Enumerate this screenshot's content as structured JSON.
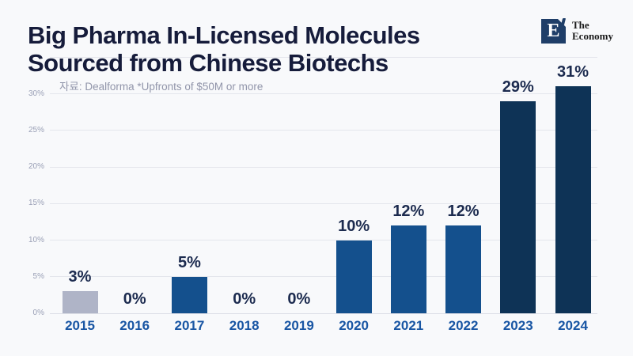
{
  "page": {
    "background": "#f8f9fb"
  },
  "logo": {
    "monogram": "E",
    "name_line1": "The",
    "name_line2": "Economy",
    "square_color": "#1f3e68"
  },
  "chart_data": {
    "type": "bar",
    "title": "Big Pharma In-Licensed Molecules Sourced from Chinese Biotechs",
    "title_lines": [
      "Big Pharma In-Licensed Molecules",
      "Sourced from Chinese Biotechs"
    ],
    "source_note": "자료: Dealforma *Upfronts of $50M or more",
    "categories": [
      "2015",
      "2016",
      "2017",
      "2018",
      "2019",
      "2020",
      "2021",
      "2022",
      "2023",
      "2024"
    ],
    "values": [
      3,
      0,
      5,
      0,
      0,
      10,
      12,
      12,
      29,
      31
    ],
    "value_labels": [
      "3%",
      "0%",
      "5%",
      "0%",
      "0%",
      "10%",
      "12%",
      "12%",
      "29%",
      "31%"
    ],
    "values_unit": "%",
    "xlabel": "",
    "ylabel": "",
    "ylim": [
      0,
      35
    ],
    "yticks": [
      {
        "value": 0,
        "label": "0%"
      },
      {
        "value": 5,
        "label": "5%"
      },
      {
        "value": 10,
        "label": "10%"
      },
      {
        "value": 15,
        "label": "15%"
      },
      {
        "value": 20,
        "label": "20%"
      },
      {
        "value": 25,
        "label": "25%"
      },
      {
        "value": 30,
        "label": "30%"
      },
      {
        "value": 35,
        "label": ""
      }
    ],
    "grid": true,
    "legend": "none",
    "bar_colors": [
      "#afb4c7",
      "#14508d",
      "#14508d",
      "#14508d",
      "#14508d",
      "#14508d",
      "#14508d",
      "#14508d",
      "#0e3356",
      "#0e3356"
    ],
    "colors": {
      "title": "#161c3b",
      "source_note": "#9195aa",
      "value_label": "#1c2b4f",
      "x_label": "#1956a4",
      "y_tick": "#9aa0b6",
      "gridline": "#e4e6ec",
      "background": "#f8f9fb"
    }
  }
}
